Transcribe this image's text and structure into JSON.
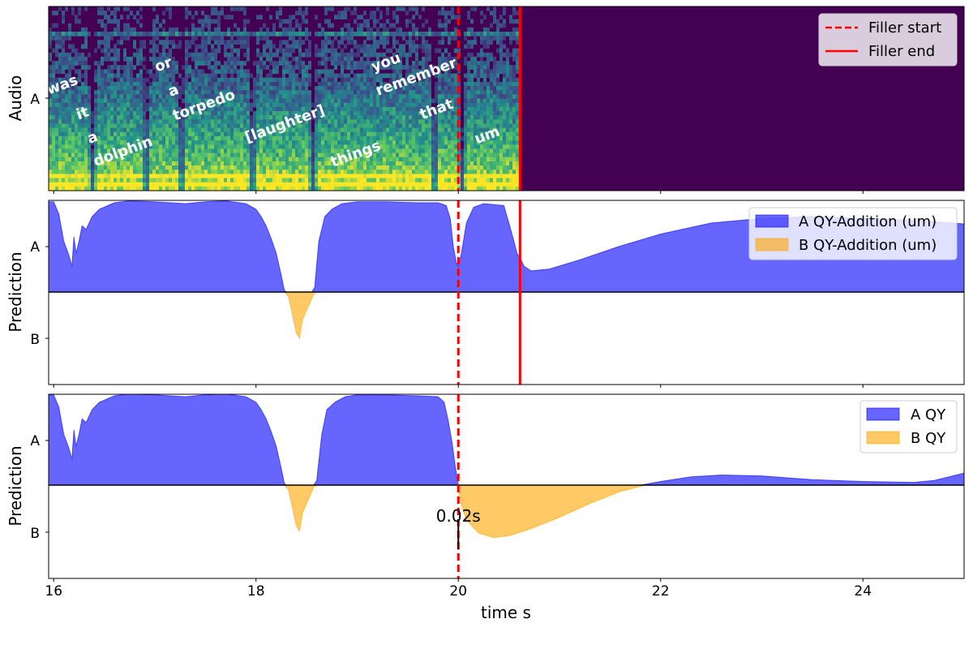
{
  "chart_data": [
    {
      "type": "heatmap",
      "ylabel": "Audio",
      "ytick_labels": [
        "A"
      ],
      "x_unit": "s",
      "xlim": [
        15.95,
        25.0
      ],
      "content_end_time": 20.6,
      "colors": {
        "low": "#440154",
        "mid": "#21918c",
        "high": "#fde725"
      },
      "words": [
        {
          "text": "was",
          "t": 16.1
        },
        {
          "text": "it",
          "t": 16.3
        },
        {
          "text": "a",
          "t": 16.4
        },
        {
          "text": "dolphin",
          "t": 16.7
        },
        {
          "text": "or",
          "t": 17.1
        },
        {
          "text": "a",
          "t": 17.2
        },
        {
          "text": "torpedo",
          "t": 17.5
        },
        {
          "text": "[laughter]",
          "t": 18.3
        },
        {
          "text": "things",
          "t": 19.0
        },
        {
          "text": "you",
          "t": 19.3
        },
        {
          "text": "remember",
          "t": 19.6
        },
        {
          "text": "that",
          "t": 19.8
        },
        {
          "text": "um",
          "t": 20.3
        }
      ],
      "markers": [
        {
          "name": "Filler start",
          "t": 20.0,
          "style": "dashed",
          "color": "#ff0000"
        },
        {
          "name": "Filler end",
          "t": 20.61,
          "style": "solid",
          "color": "#ff0000"
        }
      ],
      "legend": {
        "placement": "upper-right",
        "entries": [
          "Filler start",
          "Filler end"
        ]
      }
    },
    {
      "type": "area",
      "ylabel": "Prediction",
      "ytick_labels": [
        "A",
        "B"
      ],
      "xlim": [
        15.95,
        25.0
      ],
      "ylim": [
        -1,
        1
      ],
      "markers": [
        {
          "t": 20.0,
          "style": "dashed",
          "color": "#ff0000"
        },
        {
          "t": 20.61,
          "style": "solid",
          "color": "#ff0000"
        }
      ],
      "series": [
        {
          "name": "A QY-Addition (um)",
          "color": "#0000ff",
          "points": [
            [
              15.95,
              0.98
            ],
            [
              16.0,
              0.98
            ],
            [
              16.05,
              0.85
            ],
            [
              16.1,
              0.55
            ],
            [
              16.15,
              0.4
            ],
            [
              16.18,
              0.28
            ],
            [
              16.2,
              0.6
            ],
            [
              16.22,
              0.42
            ],
            [
              16.25,
              0.55
            ],
            [
              16.28,
              0.72
            ],
            [
              16.32,
              0.68
            ],
            [
              16.38,
              0.82
            ],
            [
              16.45,
              0.9
            ],
            [
              16.6,
              0.97
            ],
            [
              16.75,
              0.99
            ],
            [
              17.0,
              0.98
            ],
            [
              17.3,
              0.96
            ],
            [
              17.5,
              0.98
            ],
            [
              17.7,
              0.99
            ],
            [
              17.9,
              0.96
            ],
            [
              18.0,
              0.9
            ],
            [
              18.05,
              0.82
            ],
            [
              18.1,
              0.72
            ],
            [
              18.15,
              0.58
            ],
            [
              18.2,
              0.42
            ],
            [
              18.25,
              0.18
            ],
            [
              18.28,
              0.02
            ],
            [
              18.3,
              0.0
            ],
            [
              18.55,
              0.0
            ],
            [
              18.58,
              0.05
            ],
            [
              18.62,
              0.55
            ],
            [
              18.68,
              0.82
            ],
            [
              18.75,
              0.9
            ],
            [
              18.85,
              0.96
            ],
            [
              19.0,
              0.98
            ],
            [
              19.3,
              0.98
            ],
            [
              19.6,
              0.97
            ],
            [
              19.8,
              0.97
            ],
            [
              19.88,
              0.94
            ],
            [
              19.92,
              0.8
            ],
            [
              19.95,
              0.5
            ],
            [
              19.98,
              0.32
            ],
            [
              20.0,
              0.28
            ],
            [
              20.03,
              0.42
            ],
            [
              20.08,
              0.75
            ],
            [
              20.15,
              0.92
            ],
            [
              20.25,
              0.96
            ],
            [
              20.45,
              0.94
            ],
            [
              20.5,
              0.75
            ],
            [
              20.55,
              0.55
            ],
            [
              20.58,
              0.42
            ],
            [
              20.62,
              0.35
            ],
            [
              20.65,
              0.28
            ],
            [
              20.72,
              0.23
            ],
            [
              20.9,
              0.25
            ],
            [
              21.2,
              0.35
            ],
            [
              21.6,
              0.5
            ],
            [
              22.0,
              0.63
            ],
            [
              22.5,
              0.75
            ],
            [
              23.0,
              0.8
            ],
            [
              23.5,
              0.82
            ],
            [
              24.0,
              0.8
            ],
            [
              24.5,
              0.78
            ],
            [
              25.0,
              0.74
            ]
          ]
        },
        {
          "name": "B QY-Addition (um)",
          "color": "#ffa500",
          "points": [
            [
              18.28,
              0.0
            ],
            [
              18.32,
              -0.05
            ],
            [
              18.36,
              -0.25
            ],
            [
              18.4,
              -0.45
            ],
            [
              18.43,
              -0.5
            ],
            [
              18.46,
              -0.3
            ],
            [
              18.5,
              -0.2
            ],
            [
              18.54,
              -0.1
            ],
            [
              18.57,
              -0.02
            ],
            [
              18.6,
              0.0
            ]
          ]
        }
      ],
      "legend": {
        "placement": "upper-right",
        "entries": [
          "A QY-Addition (um)",
          "B QY-Addition (um)"
        ]
      }
    },
    {
      "type": "area",
      "ylabel": "Prediction",
      "xlabel": "time s",
      "ytick_labels": [
        "A",
        "B"
      ],
      "x_ticks": [
        16,
        18,
        20,
        22,
        24
      ],
      "xlim": [
        15.95,
        25.0
      ],
      "ylim": [
        -1,
        1
      ],
      "markers": [
        {
          "t": 20.0,
          "style": "dashed",
          "color": "#ff0000"
        }
      ],
      "annotation": {
        "text": "0.02s",
        "t": 20.0,
        "y_from": 0.0,
        "y_to": -0.7
      },
      "series": [
        {
          "name": "A QY",
          "color": "#0000ff",
          "points": [
            [
              15.95,
              0.98
            ],
            [
              16.0,
              0.98
            ],
            [
              16.05,
              0.85
            ],
            [
              16.1,
              0.55
            ],
            [
              16.15,
              0.4
            ],
            [
              16.18,
              0.28
            ],
            [
              16.2,
              0.6
            ],
            [
              16.22,
              0.42
            ],
            [
              16.25,
              0.55
            ],
            [
              16.28,
              0.72
            ],
            [
              16.32,
              0.68
            ],
            [
              16.38,
              0.82
            ],
            [
              16.45,
              0.9
            ],
            [
              16.6,
              0.97
            ],
            [
              16.75,
              0.99
            ],
            [
              17.0,
              0.98
            ],
            [
              17.3,
              0.96
            ],
            [
              17.5,
              0.98
            ],
            [
              17.7,
              0.99
            ],
            [
              17.9,
              0.96
            ],
            [
              18.0,
              0.9
            ],
            [
              18.05,
              0.82
            ],
            [
              18.1,
              0.72
            ],
            [
              18.15,
              0.58
            ],
            [
              18.2,
              0.42
            ],
            [
              18.25,
              0.18
            ],
            [
              18.28,
              0.02
            ],
            [
              18.3,
              0.0
            ],
            [
              18.57,
              0.0
            ],
            [
              18.6,
              0.05
            ],
            [
              18.65,
              0.55
            ],
            [
              18.7,
              0.82
            ],
            [
              18.78,
              0.9
            ],
            [
              18.88,
              0.96
            ],
            [
              19.0,
              0.98
            ],
            [
              19.3,
              0.98
            ],
            [
              19.6,
              0.97
            ],
            [
              19.8,
              0.96
            ],
            [
              19.86,
              0.9
            ],
            [
              19.9,
              0.7
            ],
            [
              19.94,
              0.45
            ],
            [
              19.97,
              0.2
            ],
            [
              20.0,
              0.0
            ],
            [
              21.8,
              0.0
            ],
            [
              22.0,
              0.04
            ],
            [
              22.3,
              0.09
            ],
            [
              22.6,
              0.11
            ],
            [
              23.0,
              0.1
            ],
            [
              23.5,
              0.06
            ],
            [
              24.0,
              0.04
            ],
            [
              24.5,
              0.03
            ],
            [
              24.7,
              0.05
            ],
            [
              25.0,
              0.13
            ]
          ]
        },
        {
          "name": "B QY",
          "color": "#ffa500",
          "points": [
            [
              18.28,
              0.0
            ],
            [
              18.32,
              -0.05
            ],
            [
              18.36,
              -0.25
            ],
            [
              18.4,
              -0.45
            ],
            [
              18.43,
              -0.5
            ],
            [
              18.46,
              -0.3
            ],
            [
              18.5,
              -0.2
            ],
            [
              18.54,
              -0.1
            ],
            [
              18.57,
              -0.02
            ],
            [
              18.6,
              0.0
            ],
            [
              20.0,
              0.0
            ],
            [
              20.02,
              -0.18
            ],
            [
              20.08,
              -0.38
            ],
            [
              20.2,
              -0.52
            ],
            [
              20.35,
              -0.57
            ],
            [
              20.5,
              -0.55
            ],
            [
              20.7,
              -0.48
            ],
            [
              21.0,
              -0.35
            ],
            [
              21.3,
              -0.2
            ],
            [
              21.6,
              -0.07
            ],
            [
              21.85,
              0.0
            ]
          ]
        }
      ],
      "legend": {
        "placement": "upper-right",
        "entries": [
          "A QY",
          "B QY"
        ]
      }
    }
  ]
}
